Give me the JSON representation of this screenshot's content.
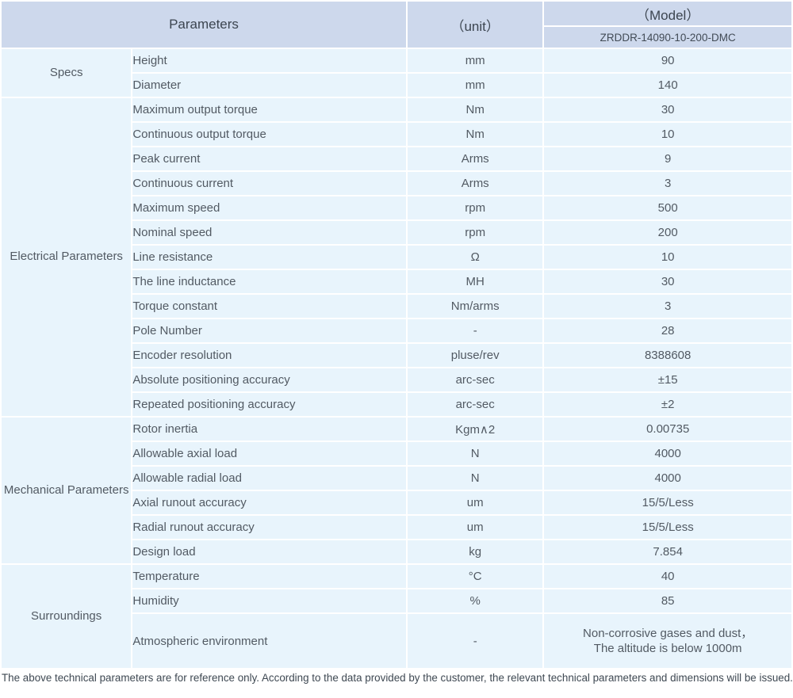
{
  "table": {
    "header": {
      "parameters": "Parameters",
      "unit": "（unit）",
      "model": "（Model）",
      "model_code": "ZRDDR-14090-10-200-DMC"
    },
    "groups": [
      {
        "label": "Specs",
        "rows": [
          {
            "param": "Height",
            "unit": "mm",
            "value": "90"
          },
          {
            "param": "Diameter",
            "unit": "mm",
            "value": "140"
          }
        ]
      },
      {
        "label": "Electrical Parameters",
        "rows": [
          {
            "param": "Maximum output torque",
            "unit": "Nm",
            "value": "30"
          },
          {
            "param": "Continuous output torque",
            "unit": "Nm",
            "value": "10"
          },
          {
            "param": "Peak current",
            "unit": "Arms",
            "value": "9"
          },
          {
            "param": "Continuous current",
            "unit": "Arms",
            "value": "3"
          },
          {
            "param": "Maximum speed",
            "unit": "rpm",
            "value": "500"
          },
          {
            "param": "Nominal speed",
            "unit": "rpm",
            "value": "200"
          },
          {
            "param": "Line resistance",
            "unit": "Ω",
            "value": "10"
          },
          {
            "param": "The line inductance",
            "unit": "MH",
            "value": "30"
          },
          {
            "param": "Torque constant",
            "unit": "Nm/arms",
            "value": "3"
          },
          {
            "param": "Pole Number",
            "unit": "-",
            "value": "28"
          },
          {
            "param": "Encoder resolution",
            "unit": "pluse/rev",
            "value": "8388608"
          },
          {
            "param": "Absolute positioning accuracy",
            "unit": "arc-sec",
            "value": "±15"
          },
          {
            "param": "Repeated positioning accuracy",
            "unit": "arc-sec",
            "value": "±2"
          }
        ]
      },
      {
        "label": "Mechanical Parameters",
        "rows": [
          {
            "param": "Rotor inertia",
            "unit": "Kgm∧2",
            "value": "0.00735"
          },
          {
            "param": "Allowable axial load",
            "unit": "N",
            "value": "4000"
          },
          {
            "param": "Allowable radial load",
            "unit": "N",
            "value": "4000"
          },
          {
            "param": "Axial runout accuracy",
            "unit": "um",
            "value": "15/5/Less"
          },
          {
            "param": "Radial runout accuracy",
            "unit": "um",
            "value": "15/5/Less"
          },
          {
            "param": "Design load",
            "unit": "kg",
            "value": "7.854"
          }
        ]
      },
      {
        "label": "Surroundings",
        "rows": [
          {
            "param": "Temperature",
            "unit": "°C",
            "value": "40"
          },
          {
            "param": "Humidity",
            "unit": "%",
            "value": "85"
          },
          {
            "param": "Atmospheric environment",
            "unit": "-",
            "value": [
              "Non-corrosive gases and dust，",
              "The altitude is below 1000m"
            ],
            "tall": true
          }
        ]
      }
    ],
    "colors": {
      "header_bg": "#cdd8ec",
      "body_bg": "#e8f4fc",
      "text": "#525a63"
    }
  },
  "footnote": "The above technical parameters are for reference only. According to the data provided by the customer, the relevant technical parameters and dimensions will be issued."
}
